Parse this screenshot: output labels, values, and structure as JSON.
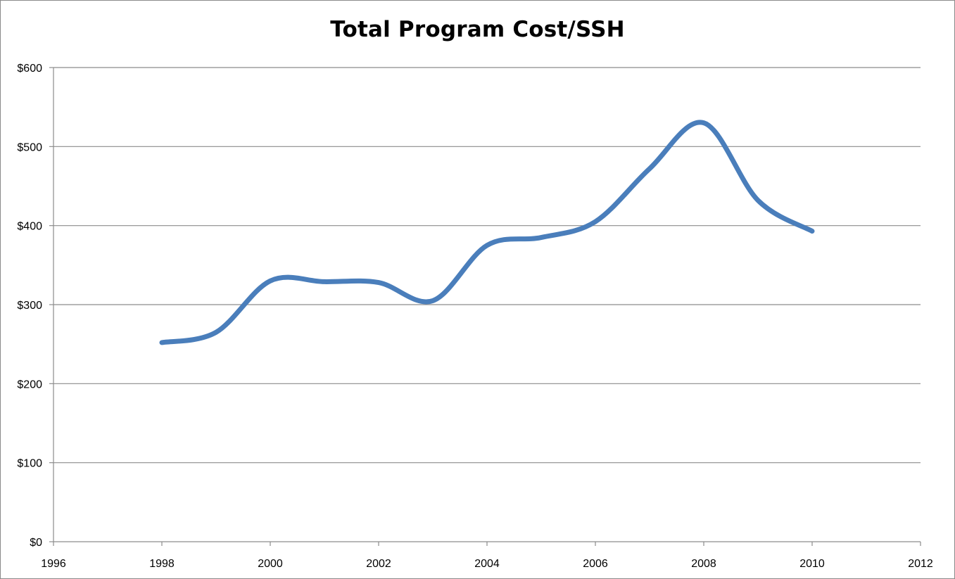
{
  "chart_data": {
    "type": "line",
    "title": "Total Program Cost/SSH",
    "xlabel": "",
    "ylabel": "",
    "xlim": [
      1996,
      2012
    ],
    "ylim": [
      0,
      600
    ],
    "x_ticks": [
      "1996",
      "1998",
      "2000",
      "2002",
      "2004",
      "2006",
      "2008",
      "2010",
      "2012"
    ],
    "y_ticks": [
      "$0",
      "$100",
      "$200",
      "$300",
      "$400",
      "$500",
      "$600"
    ],
    "y_tick_values": [
      0,
      100,
      200,
      300,
      400,
      500,
      600
    ],
    "x_tick_values": [
      1996,
      1998,
      2000,
      2002,
      2004,
      2006,
      2008,
      2010,
      2012
    ],
    "grid": true,
    "legend": "none",
    "smoothed": true,
    "series": [
      {
        "color": "#4a7ebb",
        "x": [
          1998,
          1999,
          2000,
          2001,
          2002,
          2003,
          2004,
          2005,
          2006,
          2007,
          2008,
          2009,
          2010
        ],
        "y": [
          252,
          265,
          330,
          329,
          328,
          305,
          375,
          385,
          405,
          472,
          530,
          432,
          393
        ]
      }
    ]
  }
}
